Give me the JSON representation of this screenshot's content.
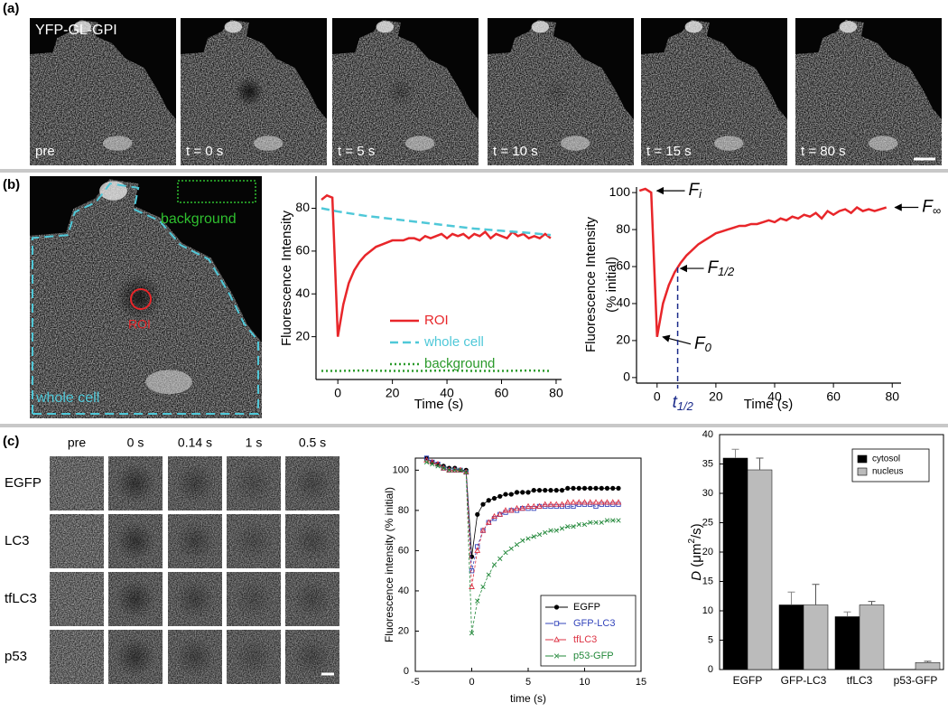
{
  "figure": {
    "panel_labels": [
      "(a)",
      "(b)",
      "(c)"
    ],
    "a": {
      "probe": "YFP-GL-GPI",
      "frames": [
        "pre",
        "t = 0 s",
        "t = 5 s",
        "t = 10 s",
        "t = 15 s",
        "t = 80 s"
      ]
    },
    "b": {
      "image_labels": {
        "background": "background",
        "roi": "ROI",
        "whole_cell": "whole cell"
      }
    },
    "c": {
      "columns": [
        "pre",
        "0 s",
        "0.14 s",
        "1 s",
        "0.5 s"
      ],
      "rows": [
        "EGFP",
        "LC3",
        "tfLC3",
        "p53"
      ]
    }
  },
  "chart_data": [
    {
      "type": "line",
      "xlabel": "Time (s)",
      "ylabel": "Fluorescence Intensity",
      "xlim": [
        -8,
        82
      ],
      "ylim": [
        0,
        95
      ],
      "xticks": [
        0,
        20,
        40,
        60,
        80
      ],
      "yticks": [
        20,
        40,
        60,
        80
      ],
      "legend": "lower right",
      "series": [
        {
          "name": "ROI",
          "color": "#e8262a",
          "dash": "solid",
          "x": [
            -6,
            -4,
            -2,
            0,
            2,
            4,
            6,
            8,
            10,
            12,
            14,
            16,
            18,
            20,
            22,
            24,
            26,
            28,
            30,
            32,
            34,
            36,
            38,
            40,
            42,
            44,
            46,
            48,
            50,
            52,
            54,
            56,
            58,
            60,
            62,
            64,
            66,
            68,
            70,
            72,
            74,
            76,
            78
          ],
          "values": [
            84,
            86,
            85,
            20,
            35,
            45,
            51,
            55,
            58,
            60,
            62,
            63,
            64,
            65,
            65,
            65,
            66,
            66,
            65,
            67,
            66,
            67,
            68,
            66,
            68,
            67,
            68,
            66,
            68,
            67,
            69,
            66,
            68,
            67,
            66,
            69,
            67,
            68,
            66,
            67,
            66,
            68,
            66
          ]
        },
        {
          "name": "whole cell",
          "color": "#4fc8d8",
          "dash": "dashed",
          "x": [
            -6,
            0,
            10,
            20,
            30,
            40,
            50,
            60,
            70,
            78
          ],
          "values": [
            80,
            78.5,
            76.5,
            75,
            73.5,
            72,
            70.5,
            69.5,
            68.5,
            67.5
          ]
        },
        {
          "name": "background",
          "color": "#2a9a2a",
          "dash": "dotted",
          "x": [
            -6,
            0,
            10,
            20,
            30,
            40,
            50,
            60,
            70,
            78
          ],
          "values": [
            4,
            4,
            4.2,
            4,
            4,
            4.2,
            4,
            4,
            4.2,
            4
          ]
        }
      ]
    },
    {
      "type": "line",
      "xlabel": "Time (s)",
      "ylabel": "Fluorescence Intensity",
      "ylabel2": "(% initial)",
      "xlim": [
        -7,
        83
      ],
      "ylim": [
        -3,
        103
      ],
      "xticks": [
        0,
        20,
        40,
        60,
        80
      ],
      "yticks": [
        0,
        20,
        40,
        60,
        80,
        100
      ],
      "series": [
        {
          "color": "#e8262a",
          "dash": "solid",
          "x": [
            -6,
            -4,
            -2,
            0,
            2,
            4,
            6,
            8,
            10,
            12,
            14,
            16,
            18,
            20,
            22,
            24,
            26,
            28,
            30,
            32,
            34,
            36,
            38,
            40,
            42,
            44,
            46,
            48,
            50,
            52,
            54,
            56,
            58,
            60,
            62,
            64,
            66,
            68,
            70,
            72,
            74,
            76,
            78
          ],
          "values": [
            101,
            102,
            100,
            22,
            40,
            50,
            57,
            62,
            66,
            69,
            72,
            74,
            76,
            78,
            79,
            80,
            81,
            82,
            82,
            83,
            83,
            84,
            85,
            84,
            86,
            85,
            87,
            86,
            88,
            87,
            89,
            86,
            90,
            88,
            90,
            91,
            89,
            92,
            90,
            91,
            90,
            91,
            92
          ]
        }
      ],
      "annotations": [
        {
          "text": "F",
          "sub": "i",
          "x": -1,
          "y": 101
        },
        {
          "text": "F",
          "sub": "1/2",
          "x": 7,
          "y": 59
        },
        {
          "text": "F",
          "sub": "0",
          "x": 1,
          "y": 22
        },
        {
          "text": "F",
          "sub": "∞",
          "x": 80,
          "y": 92
        },
        {
          "text": "t",
          "sub": "1/2",
          "x": 7
        }
      ]
    },
    {
      "type": "line",
      "xlabel": "time (s)",
      "ylabel": "Fluorescence intensity  (% initial)",
      "xlim": [
        -5,
        15
      ],
      "ylim": [
        0,
        106
      ],
      "xticks": [
        -5,
        0,
        5,
        10,
        15
      ],
      "yticks": [
        0,
        20,
        40,
        60,
        80,
        100
      ],
      "legend": "lower right",
      "x": [
        -4,
        -3.5,
        -3,
        -2.5,
        -2,
        -1.5,
        -1,
        -0.5,
        0,
        0.5,
        1,
        1.5,
        2,
        2.5,
        3,
        3.5,
        4,
        4.5,
        5,
        5.5,
        6,
        6.5,
        7,
        7.5,
        8,
        8.5,
        9,
        9.5,
        10,
        10.5,
        11,
        11.5,
        12,
        12.5,
        13
      ],
      "series": [
        {
          "name": "EGFP",
          "color": "#000000",
          "marker": "circle",
          "dash": "solid",
          "values": [
            106,
            104,
            103,
            102,
            101,
            101,
            100,
            100,
            57,
            78,
            83,
            85,
            86,
            87,
            88,
            88,
            89,
            89,
            89,
            90,
            90,
            90,
            90,
            90,
            90,
            91,
            91,
            91,
            91,
            91,
            91,
            91,
            91,
            91,
            91
          ]
        },
        {
          "name": "GFP-LC3",
          "color": "#3344bb",
          "marker": "square",
          "dash": "dashed",
          "values": [
            106,
            104,
            103,
            101,
            100,
            100,
            100,
            99,
            50,
            62,
            70,
            74,
            76,
            78,
            79,
            80,
            80,
            81,
            81,
            81,
            82,
            82,
            82,
            82,
            82,
            82,
            82,
            83,
            83,
            83,
            82,
            83,
            83,
            83,
            83
          ]
        },
        {
          "name": "tfLC3",
          "color": "#dd3344",
          "marker": "triangle",
          "dash": "dashed",
          "values": [
            105,
            104,
            103,
            101,
            100,
            100,
            100,
            99,
            42,
            60,
            70,
            74,
            77,
            78,
            80,
            80,
            81,
            81,
            82,
            82,
            82,
            83,
            83,
            83,
            83,
            84,
            84,
            84,
            84,
            84,
            84,
            84,
            84,
            84,
            84
          ]
        },
        {
          "name": "p53-GFP",
          "color": "#22883a",
          "marker": "x",
          "dash": "dashed",
          "values": [
            104,
            103,
            102,
            101,
            100,
            100,
            100,
            99,
            19,
            35,
            42,
            48,
            53,
            56,
            59,
            61,
            63,
            65,
            66,
            67,
            68,
            69,
            70,
            70,
            71,
            72,
            72,
            73,
            73,
            74,
            74,
            74,
            75,
            75,
            75
          ]
        }
      ]
    },
    {
      "type": "bar",
      "ylabel": {
        "var": "D",
        "unit": " (μm",
        "sup": "2",
        "unit_end": "/s)"
      },
      "categories": [
        "EGFP",
        "GFP-LC3",
        "tfLC3",
        "p53-GFP"
      ],
      "ylim": [
        0,
        40
      ],
      "yticks": [
        0,
        5,
        10,
        15,
        20,
        25,
        30,
        35,
        40
      ],
      "legend": "upper right",
      "series": [
        {
          "name": "cytosol",
          "color": "#000000",
          "values": [
            36,
            11,
            9,
            null
          ],
          "errors": [
            1.5,
            2.2,
            0.8,
            null
          ]
        },
        {
          "name": "nucleus",
          "color": "#bbbbbb",
          "values": [
            34,
            11,
            11,
            1.2
          ],
          "errors": [
            2,
            3.5,
            0.6,
            0.2
          ]
        }
      ]
    }
  ]
}
